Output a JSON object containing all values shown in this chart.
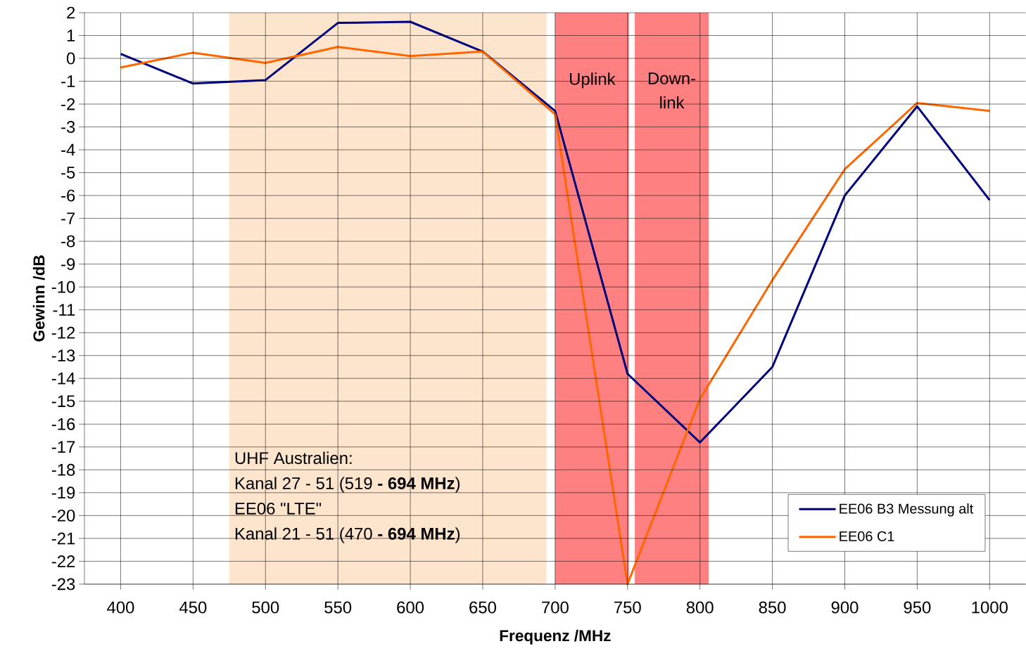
{
  "chart_data": {
    "type": "line",
    "xlabel": "Frequenz /MHz",
    "ylabel": "Gewinn /dB",
    "x": [
      400,
      450,
      500,
      550,
      600,
      650,
      700,
      750,
      800,
      850,
      900,
      950,
      1000
    ],
    "series": [
      {
        "name": "EE06 B3 Messung alt",
        "color": "#000080",
        "values": [
          0.2,
          -1.1,
          -0.95,
          1.55,
          1.6,
          0.3,
          -2.3,
          -13.8,
          -16.8,
          -13.5,
          -6.0,
          -2.1,
          -6.2
        ]
      },
      {
        "name": "EE06 C1",
        "color": "#ff6600",
        "values": [
          -0.4,
          0.25,
          -0.2,
          0.5,
          0.1,
          0.3,
          -2.45,
          -23,
          -14.9,
          -9.7,
          -4.85,
          -1.95,
          -2.3
        ]
      }
    ],
    "xlim": [
      375,
      1025
    ],
    "xticks": [
      400,
      450,
      500,
      550,
      600,
      650,
      700,
      750,
      800,
      850,
      900,
      950,
      1000
    ],
    "ylim": [
      -23,
      2
    ],
    "yticks": [
      2,
      1,
      0,
      -1,
      -2,
      -3,
      -4,
      -5,
      -6,
      -7,
      -8,
      -9,
      -10,
      -11,
      -12,
      -13,
      -14,
      -15,
      -16,
      -17,
      -18,
      -19,
      -20,
      -21,
      -22,
      -23
    ],
    "bands": [
      {
        "axis": "x",
        "from": 475,
        "to": 694,
        "color": "#fde4cc"
      },
      {
        "axis": "x",
        "from": 700,
        "to": 751,
        "label": "Uplink",
        "color": "#ff8080"
      },
      {
        "axis": "x",
        "from": 755,
        "to": 806,
        "label": "Down-link",
        "color": "#ff8080"
      }
    ],
    "annotations": [
      "UHF Australien:",
      "Kanal 27 - 51 (519 **- 694 MHz**)",
      "EE06 \"LTE\"",
      "Kanal 21 - 51 (470 **- 694 MHz**)"
    ],
    "grid": true,
    "legend": "bottom right",
    "marker": "none",
    "line_style": "solid"
  }
}
